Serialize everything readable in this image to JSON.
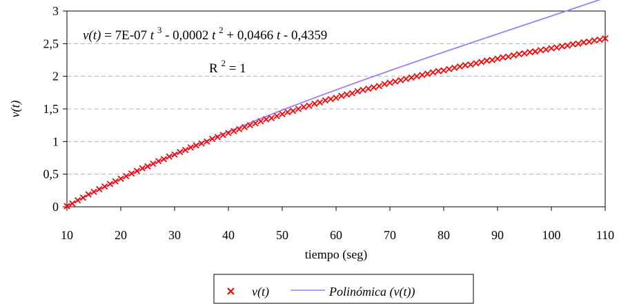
{
  "chart_data": {
    "type": "scatter",
    "xlabel": "tiempo (seg)",
    "ylabel": "v(t)",
    "xlim": [
      10,
      110
    ],
    "ylim": [
      0,
      3
    ],
    "x_ticks": [
      "10",
      "20",
      "30",
      "40",
      "50",
      "60",
      "70",
      "80",
      "90",
      "100",
      "110"
    ],
    "y_ticks": [
      "0",
      "0,5",
      "1",
      "1,5",
      "2",
      "2,5",
      "3"
    ],
    "grid": "horizontal dashed",
    "series": [
      {
        "name": "v(t)",
        "kind": "markers",
        "marker": "x",
        "color": "#ff0000",
        "x": [
          10,
          11,
          12,
          13,
          14,
          15,
          16,
          17,
          18,
          19,
          20,
          21,
          22,
          23,
          24,
          25,
          26,
          27,
          28,
          29,
          30,
          31,
          32,
          33,
          34,
          35,
          36,
          37,
          38,
          39,
          40,
          41,
          42,
          43,
          44,
          45,
          46,
          47,
          48,
          49,
          50,
          51,
          52,
          53,
          54,
          55,
          56,
          57,
          58,
          59,
          60,
          61,
          62,
          63,
          64,
          65,
          66,
          67,
          68,
          69,
          70,
          71,
          72,
          73,
          74,
          75,
          76,
          77,
          78,
          79,
          80,
          81,
          82,
          83,
          84,
          85,
          86,
          87,
          88,
          89,
          90,
          91,
          92,
          93,
          94,
          95,
          96,
          97,
          98,
          99,
          100,
          101,
          102,
          103,
          104,
          105,
          106,
          107,
          108,
          109,
          110
        ],
        "y": [
          0.01,
          0.05,
          0.1,
          0.14,
          0.19,
          0.23,
          0.27,
          0.31,
          0.35,
          0.39,
          0.43,
          0.47,
          0.51,
          0.55,
          0.59,
          0.62,
          0.66,
          0.7,
          0.73,
          0.77,
          0.8,
          0.84,
          0.87,
          0.91,
          0.94,
          0.97,
          1.0,
          1.04,
          1.07,
          1.1,
          1.13,
          1.16,
          1.19,
          1.22,
          1.25,
          1.28,
          1.31,
          1.34,
          1.36,
          1.39,
          1.42,
          1.45,
          1.47,
          1.5,
          1.53,
          1.55,
          1.58,
          1.6,
          1.63,
          1.65,
          1.67,
          1.7,
          1.72,
          1.74,
          1.77,
          1.79,
          1.81,
          1.83,
          1.85,
          1.88,
          1.9,
          1.92,
          1.94,
          1.96,
          1.98,
          2.0,
          2.02,
          2.04,
          2.06,
          2.08,
          2.09,
          2.11,
          2.13,
          2.15,
          2.17,
          2.18,
          2.2,
          2.22,
          2.24,
          2.25,
          2.27,
          2.29,
          2.3,
          2.32,
          2.34,
          2.35,
          2.37,
          2.38,
          2.4,
          2.41,
          2.43,
          2.44,
          2.46,
          2.47,
          2.49,
          2.5,
          2.52,
          2.53,
          2.55,
          2.56,
          2.58
        ]
      },
      {
        "name": "Polinómica (v(t))",
        "kind": "trendline",
        "color": "#9c7bff",
        "coefficients": {
          "a3": 7e-07,
          "a2": -0.0002,
          "a1": 0.0466,
          "a0": -0.4359
        }
      }
    ],
    "annotations": {
      "equation": {
        "lhs": "v(t)",
        "eq1": " = 7E-07",
        "t1": "t",
        "p1": "3",
        "eq2": " - 0,0002",
        "t2": "t",
        "p2": "2",
        "eq3": " + 0,0466",
        "t3": "t",
        "eq4": " - 0,4359"
      },
      "r2": {
        "base": "R",
        "sup": "2",
        "rest": " = 1"
      }
    },
    "legend": {
      "placement": "bottom-center",
      "items": [
        {
          "marker": "x",
          "label": "v(t)"
        },
        {
          "marker": "line",
          "label": "Polinómica (v(t))"
        }
      ]
    }
  }
}
